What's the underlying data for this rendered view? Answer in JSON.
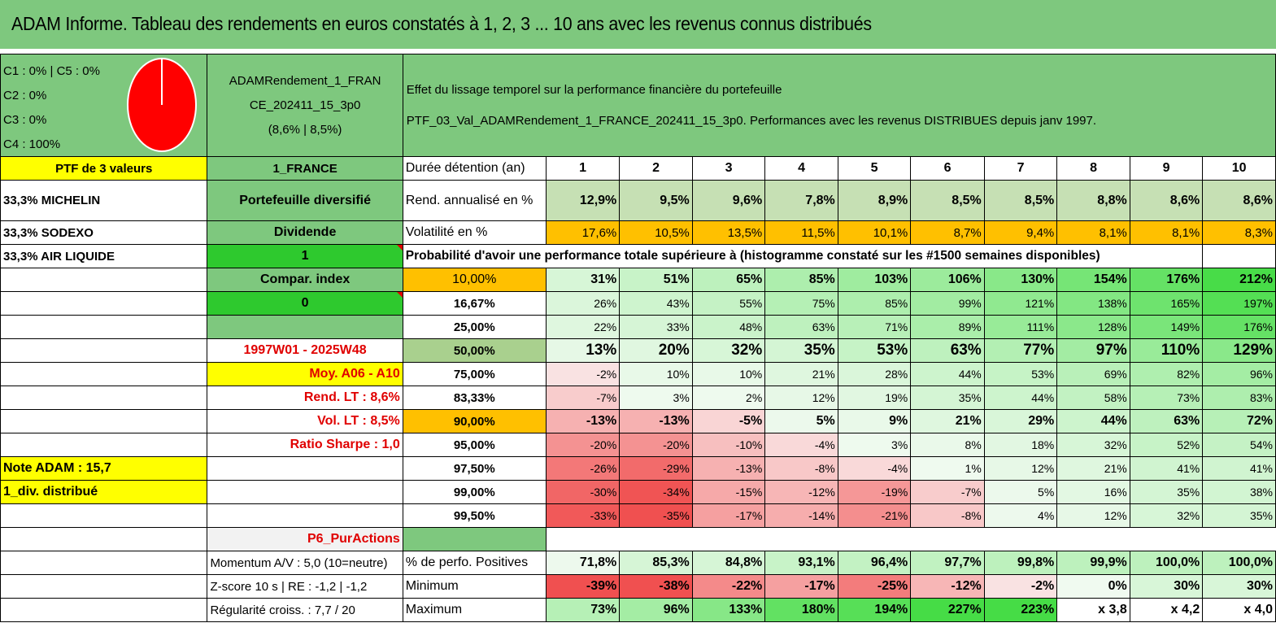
{
  "title": "ADAM Informe. Tableau des rendements en euros constatés à 1, 2, 3 ... 10 ans avec les revenus connus distribués",
  "legend": [
    "C1 : 0% | C5 : 0%",
    "C2 : 0%",
    "C3 : 0%",
    "C4 : 100%"
  ],
  "pie_color": "#ff0000",
  "pie_slice_percent": 100,
  "portfolio": {
    "name_line1": "ADAMRendement_1_FRAN",
    "name_line2": "CE_202411_15_3p0",
    "name_line3": "(8,6% | 8,5%)",
    "effect_line1": "Effet du lissage temporel sur la performance financière du portefeuille",
    "effect_line2": "PTF_03_Val_ADAMRendement_1_FRANCE_202411_15_3p0. Performances avec les revenus DISTRIBUES depuis janv 1997."
  },
  "left_col": [
    "PTF de 3 valeurs",
    "33,3% MICHELIN",
    "33,3% SODEXO",
    "33,3% AIR LIQUIDE",
    "Note ADAM : 15,7",
    "1_div. distribué"
  ],
  "mid_col": {
    "market": "1_FRANCE",
    "type": "Portefeuille diversifié",
    "dividend_label": "Dividende",
    "dividend_value": "1",
    "compar_label": "Compar. index",
    "compar_value": "0",
    "period": "1997W01 - 2025W48",
    "moy": "Moy. A06 - A10",
    "rend_lt": "Rend. LT : 8,6%",
    "vol_lt": "Vol. LT : 8,5%",
    "sharpe": "Ratio Sharpe : 1,0",
    "p6": "P6_PurActions",
    "momentum": "Momentum A/V : 5,0 (10=neutre)",
    "zscore": "Z-score 10 s | RE : -1,2 | -1,2",
    "regularite": "Régularité croiss. : 7,7 / 20"
  },
  "table": {
    "duration_label": "Durée détention (an)",
    "years": [
      "1",
      "2",
      "3",
      "4",
      "5",
      "6",
      "7",
      "8",
      "9",
      "10"
    ],
    "rend_label": "Rend. annualisé en %",
    "rend": [
      "12,9%",
      "9,5%",
      "9,6%",
      "7,8%",
      "8,9%",
      "8,5%",
      "8,5%",
      "8,8%",
      "8,6%",
      "8,6%"
    ],
    "vol_label": "Volatilité en %",
    "vol": [
      "17,6%",
      "10,5%",
      "13,5%",
      "11,5%",
      "10,1%",
      "8,7%",
      "9,4%",
      "8,1%",
      "8,1%",
      "8,3%"
    ],
    "proba_title": "Probabilité d'avoir une performance totale supérieure à (histogramme constaté sur les #1500 semaines disponibles)",
    "proba_rows": [
      {
        "label": "10,00%",
        "values": [
          "31%",
          "51%",
          "65%",
          "85%",
          "103%",
          "106%",
          "130%",
          "154%",
          "176%",
          "212%"
        ]
      },
      {
        "label": "16,67%",
        "values": [
          "26%",
          "43%",
          "55%",
          "75%",
          "85%",
          "99%",
          "121%",
          "138%",
          "165%",
          "197%"
        ]
      },
      {
        "label": "25,00%",
        "values": [
          "22%",
          "33%",
          "48%",
          "63%",
          "71%",
          "89%",
          "111%",
          "128%",
          "149%",
          "176%"
        ]
      },
      {
        "label": "50,00%",
        "values": [
          "13%",
          "20%",
          "32%",
          "35%",
          "53%",
          "63%",
          "77%",
          "97%",
          "110%",
          "129%"
        ]
      },
      {
        "label": "75,00%",
        "values": [
          "-2%",
          "10%",
          "10%",
          "21%",
          "28%",
          "44%",
          "53%",
          "69%",
          "82%",
          "96%"
        ]
      },
      {
        "label": "83,33%",
        "values": [
          "-7%",
          "3%",
          "2%",
          "12%",
          "19%",
          "35%",
          "44%",
          "58%",
          "73%",
          "83%"
        ]
      },
      {
        "label": "90,00%",
        "values": [
          "-13%",
          "-13%",
          "-5%",
          "5%",
          "9%",
          "21%",
          "29%",
          "44%",
          "63%",
          "72%"
        ]
      },
      {
        "label": "95,00%",
        "values": [
          "-20%",
          "-20%",
          "-10%",
          "-4%",
          "3%",
          "8%",
          "18%",
          "32%",
          "52%",
          "54%"
        ]
      },
      {
        "label": "97,50%",
        "values": [
          "-26%",
          "-29%",
          "-13%",
          "-8%",
          "-4%",
          "1%",
          "12%",
          "21%",
          "41%",
          "41%"
        ]
      },
      {
        "label": "99,00%",
        "values": [
          "-30%",
          "-34%",
          "-15%",
          "-12%",
          "-19%",
          "-7%",
          "5%",
          "16%",
          "35%",
          "38%"
        ]
      },
      {
        "label": "99,50%",
        "values": [
          "-33%",
          "-35%",
          "-17%",
          "-14%",
          "-21%",
          "-8%",
          "4%",
          "12%",
          "32%",
          "35%"
        ]
      }
    ],
    "pos_label": "% de perfo. Positives",
    "pos": [
      "71,8%",
      "85,3%",
      "84,8%",
      "93,1%",
      "96,4%",
      "97,7%",
      "99,8%",
      "99,9%",
      "100,0%",
      "100,0%"
    ],
    "min_label": "Minimum",
    "min": [
      "-39%",
      "-38%",
      "-22%",
      "-17%",
      "-25%",
      "-12%",
      "-2%",
      "0%",
      "30%",
      "30%"
    ],
    "max_label": "Maximum",
    "max": [
      "73%",
      "96%",
      "133%",
      "180%",
      "194%",
      "227%",
      "223%",
      "x 3,8",
      "x 4,2",
      "x 4,0"
    ]
  },
  "colors": {
    "green": "#7ec87e",
    "bright_green": "#2ec92e",
    "yellow": "#ffff00",
    "orange": "#ffc000",
    "red_text": "#e00000"
  }
}
